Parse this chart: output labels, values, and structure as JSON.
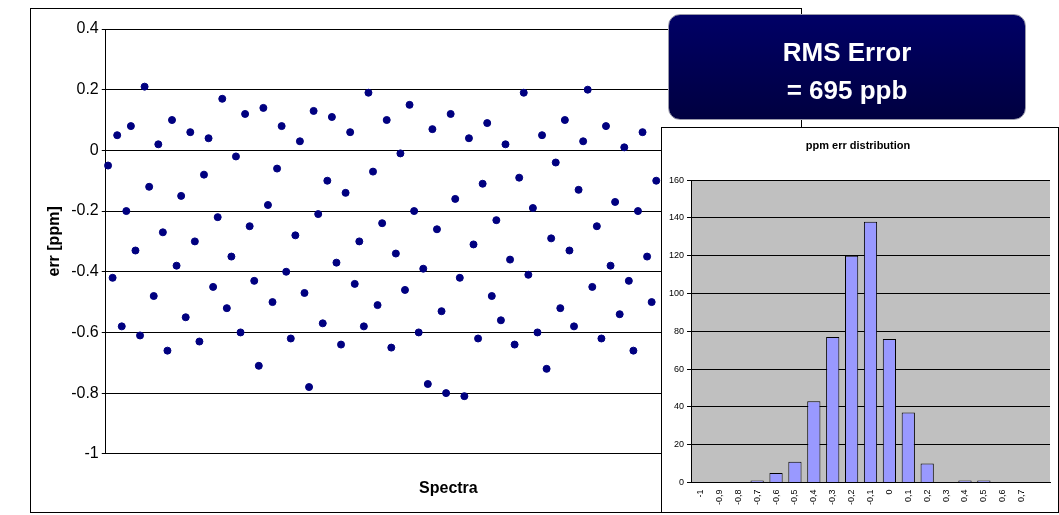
{
  "chart_data": [
    {
      "type": "scatter",
      "ylabel": "err [ppm]",
      "xlabel": "Spectra",
      "color": "#000080",
      "marker": "circle",
      "grid": "y",
      "tick_labels": "y",
      "ylim": [
        -1,
        0.4
      ],
      "yticks": [
        -1,
        -0.8,
        -0.6,
        -0.4,
        -0.2,
        0,
        0.2,
        0.4
      ],
      "categories": [
        null,
        null,
        null,
        null,
        null,
        null,
        null,
        null,
        null,
        null,
        null,
        null,
        null,
        null,
        null,
        null,
        null,
        null,
        null,
        null,
        null,
        null,
        null,
        null,
        null,
        null,
        null,
        null,
        null,
        null,
        null,
        null,
        null,
        null,
        null,
        null,
        null,
        null,
        null,
        null,
        null,
        null,
        null,
        null,
        null,
        null,
        null,
        null,
        null,
        null,
        null,
        null,
        null,
        null,
        null,
        null,
        null,
        null,
        null,
        null,
        null,
        null,
        null,
        null,
        null,
        null,
        null,
        null,
        null,
        null,
        null,
        null,
        null,
        null,
        null,
        null,
        null,
        null,
        null,
        null,
        null,
        null,
        null,
        null,
        null,
        null,
        null,
        null,
        null,
        null,
        null,
        null,
        null,
        null,
        null,
        null,
        null,
        null,
        null,
        null,
        null,
        null,
        null,
        null,
        null,
        null,
        null,
        null,
        null,
        null,
        null,
        null,
        null,
        null,
        null,
        null,
        null,
        null,
        null,
        null,
        null,
        null,
        null,
        null,
        null,
        null,
        null,
        null,
        null,
        null,
        null,
        null,
        null,
        null,
        null,
        null,
        null,
        null,
        null,
        null,
        null,
        null,
        null,
        null,
        null,
        null,
        null,
        null,
        null,
        null
      ],
      "values": [
        -0.05,
        -0.42,
        0.05,
        -0.58,
        -0.2,
        0.08,
        -0.33,
        -0.61,
        0.21,
        -0.12,
        -0.48,
        0.02,
        -0.27,
        -0.66,
        0.1,
        -0.38,
        -0.15,
        -0.55,
        0.06,
        -0.3,
        -0.63,
        -0.08,
        0.04,
        -0.45,
        -0.22,
        0.17,
        -0.52,
        -0.35,
        -0.02,
        -0.6,
        0.12,
        -0.25,
        -0.43,
        -0.71,
        0.14,
        -0.18,
        -0.5,
        -0.06,
        0.08,
        -0.4,
        -0.62,
        -0.28,
        0.03,
        -0.47,
        -0.78,
        0.13,
        -0.21,
        -0.57,
        -0.1,
        0.11,
        -0.37,
        -0.64,
        -0.14,
        0.06,
        -0.44,
        -0.3,
        -0.58,
        0.19,
        -0.07,
        -0.51,
        -0.24,
        0.1,
        -0.65,
        -0.34,
        -0.01,
        -0.46,
        0.15,
        -0.2,
        -0.6,
        -0.39,
        -0.77,
        0.07,
        -0.26,
        -0.53,
        -0.8,
        0.12,
        -0.16,
        -0.42,
        -0.81,
        0.04,
        -0.31,
        -0.62,
        -0.11,
        0.09,
        -0.48,
        -0.23,
        -0.56,
        0.02,
        -0.36,
        -0.64,
        -0.09,
        0.19,
        -0.41,
        -0.19,
        -0.6,
        0.05,
        -0.72,
        -0.29,
        -0.04,
        -0.52,
        0.1,
        -0.33,
        -0.58,
        -0.13,
        0.03,
        0.2,
        -0.45,
        -0.25,
        -0.62,
        0.08,
        -0.38,
        -0.17,
        -0.54,
        0.01,
        -0.43,
        -0.66,
        -0.2,
        0.06,
        -0.35,
        -0.5,
        -0.1,
        null,
        null,
        null,
        null,
        null,
        null,
        null,
        null,
        null,
        null,
        null,
        null,
        null,
        null,
        null,
        null,
        null,
        null,
        null,
        null,
        null,
        null,
        null,
        null,
        null,
        null,
        null,
        null,
        null
      ]
    },
    {
      "type": "bar",
      "title": "ppm err distribution",
      "color": "#9999ff",
      "grid": "y",
      "categories": [
        "-1",
        "-0,9",
        "-0,8",
        "-0,7",
        "-0,6",
        "-0,5",
        "-0,4",
        "-0,3",
        "-0,2",
        "-0,1",
        "0",
        "0,1",
        "0,2",
        "0,3",
        "0,4",
        "0,5",
        "0,6",
        "0,7",
        null
      ],
      "values": [
        0,
        0,
        0,
        1,
        5,
        11,
        43,
        77,
        120,
        138,
        76,
        37,
        10,
        0,
        1,
        1,
        0,
        0,
        0
      ],
      "ylim": [
        0,
        160
      ],
      "yticks": [
        0,
        20,
        40,
        60,
        80,
        100,
        120,
        140,
        160
      ]
    },
    {
      "type": "other",
      "title": "RMS Error",
      "subtitle": "= 695 ppb"
    }
  ]
}
